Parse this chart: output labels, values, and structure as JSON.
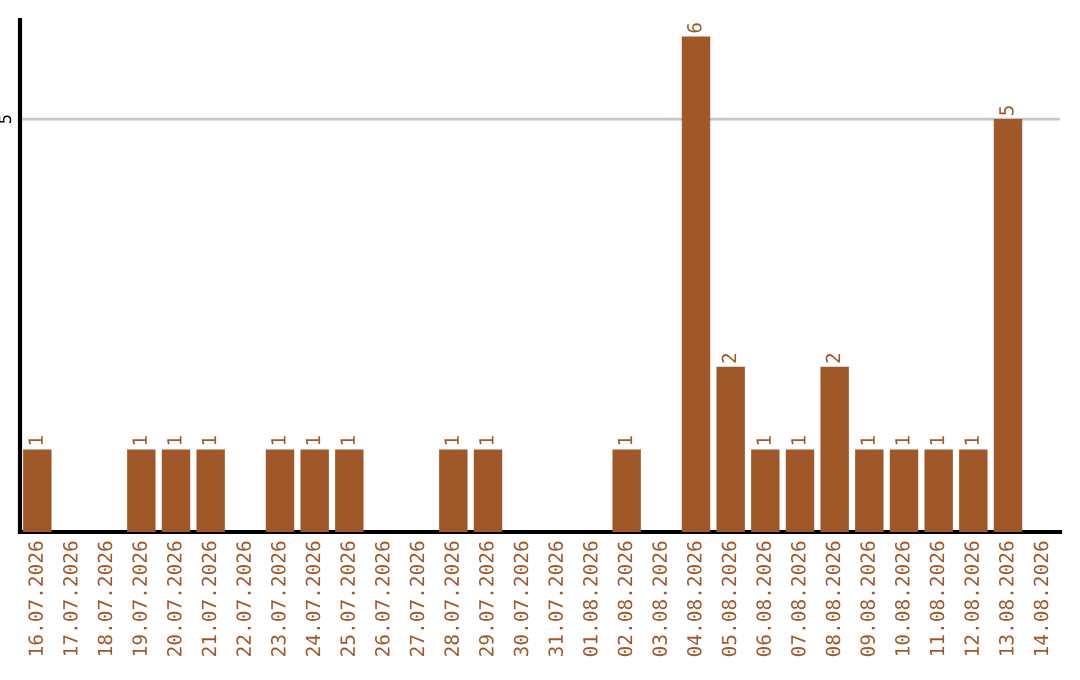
{
  "chart_data": {
    "type": "bar",
    "categories": [
      "16.07.2026",
      "17.07.2026",
      "18.07.2026",
      "19.07.2026",
      "20.07.2026",
      "21.07.2026",
      "22.07.2026",
      "23.07.2026",
      "24.07.2026",
      "25.07.2026",
      "26.07.2026",
      "27.07.2026",
      "28.07.2026",
      "29.07.2026",
      "30.07.2026",
      "31.07.2026",
      "01.08.2026",
      "02.08.2026",
      "03.08.2026",
      "04.08.2026",
      "05.08.2026",
      "06.08.2026",
      "07.08.2026",
      "08.08.2026",
      "09.08.2026",
      "10.08.2026",
      "11.08.2026",
      "12.08.2026",
      "13.08.2026",
      "14.08.2026"
    ],
    "values": [
      1,
      0,
      0,
      1,
      1,
      1,
      0,
      1,
      1,
      1,
      0,
      0,
      1,
      1,
      0,
      0,
      0,
      1,
      0,
      6,
      2,
      1,
      1,
      2,
      1,
      1,
      1,
      1,
      5,
      0
    ],
    "value_labels": [
      "1",
      null,
      null,
      "1",
      "1",
      "1",
      null,
      "1",
      "1",
      "1",
      null,
      null,
      "1",
      "1",
      null,
      null,
      null,
      "1",
      null,
      "6",
      "2",
      "1",
      "1",
      "2",
      "1",
      "1",
      "1",
      "1",
      "5",
      null
    ],
    "color": "#a0582a",
    "ylim": [
      0,
      6.2
    ],
    "yticks": [
      5
    ],
    "grid": "y",
    "legend": false
  }
}
